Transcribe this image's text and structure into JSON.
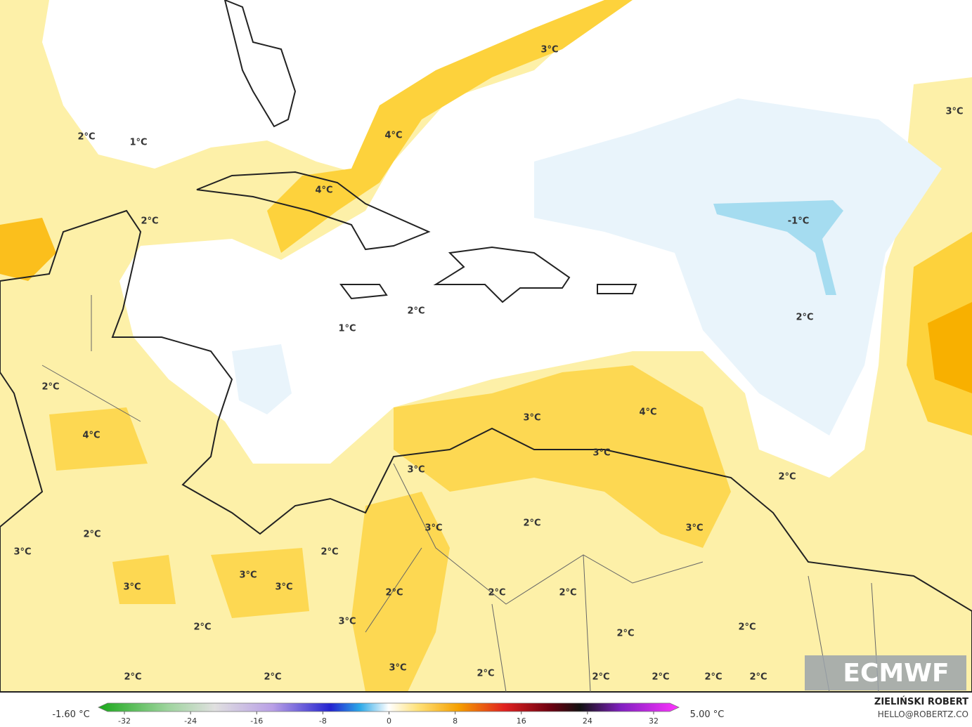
{
  "map": {
    "contour_labels": [
      "2°C",
      "1°C",
      "3°C",
      "3°C",
      "4°C",
      "4°C",
      "2°C",
      "-1°C",
      "2°C",
      "1°C",
      "2°C",
      "2°C",
      "4°C",
      "3°C",
      "4°C",
      "3°C",
      "3°C",
      "2°C",
      "2°C",
      "3°C",
      "3°C",
      "2°C",
      "2°C",
      "3°C",
      "3°C",
      "3°C",
      "3°C",
      "2°C",
      "2°C",
      "2°C",
      "3°C",
      "2°C",
      "2°C",
      "2°C",
      "3°C",
      "2°C",
      "2°C",
      "2°C",
      "2°C",
      "2°C",
      "2°C",
      "2°C"
    ],
    "logo": "ECMWF"
  },
  "colorbar": {
    "min_label": "-1.60 °C",
    "max_label": "5.00 °C",
    "ticks": [
      "-32",
      "-24",
      "-16",
      "-8",
      "0",
      "8",
      "16",
      "24",
      "32"
    ]
  },
  "credits": {
    "author": "ZIELIŃSKI ROBERT",
    "contact": "HELLO@ROBERTZ.CO"
  }
}
